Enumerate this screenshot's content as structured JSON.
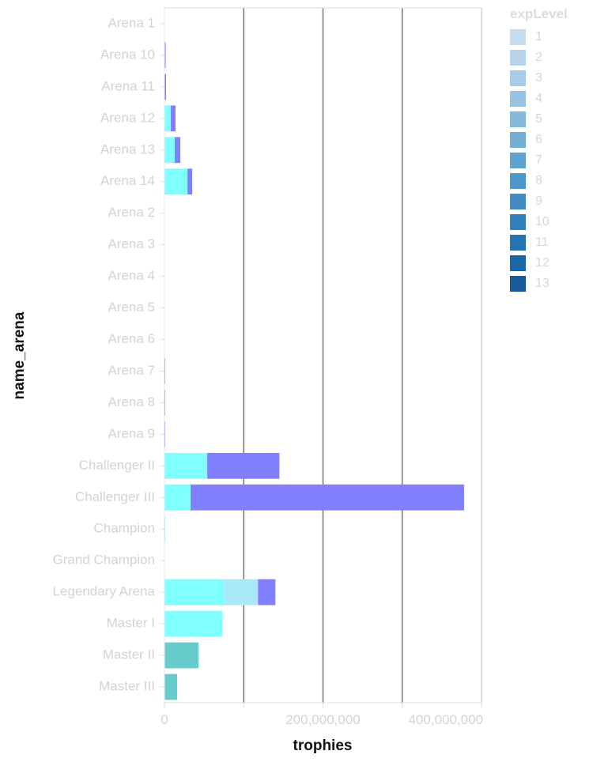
{
  "chart_data": {
    "type": "bar",
    "orientation": "horizontal",
    "stacked": true,
    "xlabel": "trophies",
    "ylabel": "name_arena",
    "xlim": [
      0,
      400000000
    ],
    "x_ticks": [
      0,
      100000000,
      200000000,
      300000000,
      400000000
    ],
    "x_tick_labels": [
      "0",
      "",
      "200,000,000",
      "",
      "400,000,000"
    ],
    "grid": true,
    "categories": [
      "Arena 1",
      "Arena 10",
      "Arena 11",
      "Arena 12",
      "Arena 13",
      "Arena 14",
      "Arena 2",
      "Arena 3",
      "Arena 4",
      "Arena 5",
      "Arena 6",
      "Arena 7",
      "Arena 8",
      "Arena 9",
      "Challenger II",
      "Challenger III",
      "Champion",
      "Grand Champion",
      "Legendary Arena",
      "Master I",
      "Master II",
      "Master III"
    ],
    "segments": [
      {
        "name": "cyan",
        "color": "#7fffff",
        "values": [
          0,
          0,
          0,
          8000000,
          13000000,
          29000000,
          0,
          0,
          0,
          0,
          0,
          0,
          0,
          0,
          54000000,
          33000000,
          0,
          0,
          76000000,
          73000000,
          0,
          0
        ]
      },
      {
        "name": "light-blue",
        "color": "#a8e8f8",
        "values": [
          0,
          0,
          0,
          0,
          0,
          0,
          0,
          0,
          0,
          0,
          0,
          0,
          0,
          0,
          0,
          0,
          1000000,
          0,
          42000000,
          0,
          0,
          0
        ]
      },
      {
        "name": "blue-violet",
        "color": "#8080ff",
        "values": [
          0,
          1500000,
          2000000,
          6000000,
          7000000,
          6000000,
          0,
          0,
          0,
          0,
          0,
          0,
          0,
          1000000,
          91000000,
          345000000,
          0,
          0,
          22000000,
          0,
          0,
          0
        ]
      },
      {
        "name": "teal",
        "color": "#66cccc",
        "values": [
          0,
          0,
          0,
          0,
          0,
          0,
          0,
          0,
          0,
          0,
          0,
          0,
          0,
          0,
          0,
          0,
          0,
          0,
          0,
          0,
          43000000,
          16000000
        ]
      },
      {
        "name": "gray",
        "color": "#888888",
        "values": [
          0,
          0,
          0,
          0,
          0,
          0,
          0,
          0,
          0,
          0,
          0,
          1000000,
          1000000,
          0,
          0,
          0,
          0,
          0,
          0,
          0,
          0,
          0
        ]
      }
    ],
    "legend": {
      "title": "expLevel",
      "position": "top-right",
      "items": [
        {
          "label": "1",
          "color": "#c6dbef"
        },
        {
          "label": "2",
          "color": "#b7d4ea"
        },
        {
          "label": "3",
          "color": "#a9cce6"
        },
        {
          "label": "4",
          "color": "#9ac3e1"
        },
        {
          "label": "5",
          "color": "#87b9dc"
        },
        {
          "label": "6",
          "color": "#74add6"
        },
        {
          "label": "7",
          "color": "#62a2d0"
        },
        {
          "label": "8",
          "color": "#5097c9"
        },
        {
          "label": "9",
          "color": "#408bc2"
        },
        {
          "label": "10",
          "color": "#327fbb"
        },
        {
          "label": "11",
          "color": "#2673b2"
        },
        {
          "label": "12",
          "color": "#1c66a7"
        },
        {
          "label": "13",
          "color": "#1a5a9c"
        }
      ]
    }
  }
}
